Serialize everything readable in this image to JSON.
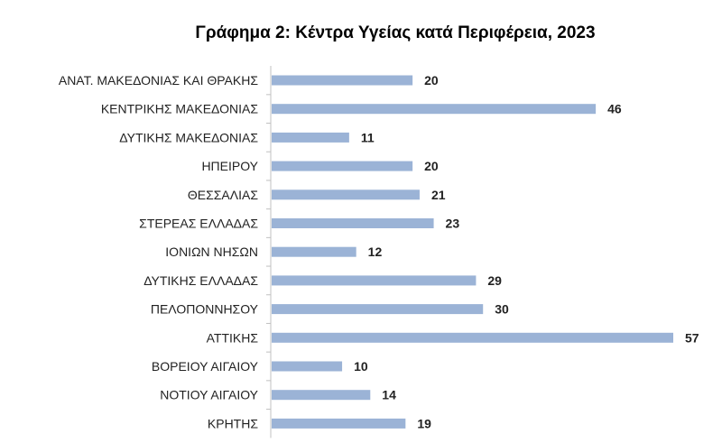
{
  "chart_data": {
    "type": "bar",
    "orientation": "horizontal",
    "title": "Γράφημα 2: Κέντρα Υγείας κατά Περιφέρεια, 2023",
    "categories": [
      "ΑΝΑΤ. ΜΑΚΕΔΟΝΙΑΣ ΚΑΙ ΘΡΑΚΗΣ",
      "ΚΕΝΤΡΙΚΗΣ ΜΑΚΕΔΟΝΙΑΣ",
      "ΔΥΤΙΚΗΣ ΜΑΚΕΔΟΝΙΑΣ",
      "ΗΠΕΙΡΟΥ",
      "ΘΕΣΣΑΛΙΑΣ",
      "ΣΤΕΡΕΑΣ ΕΛΛΑΔΑΣ",
      "ΙΟΝΙΩΝ ΝΗΣΩΝ",
      "ΔΥΤΙΚΗΣ ΕΛΛΑΔΑΣ",
      "ΠΕΛΟΠΟΝΝΗΣΟΥ",
      "ΑΤΤΙΚΗΣ",
      "ΒΟΡΕΙΟΥ ΑΙΓΑΙΟΥ",
      "ΝΟΤΙΟΥ ΑΙΓΑΙΟΥ",
      "ΚΡΗΤΗΣ"
    ],
    "values": [
      20,
      46,
      11,
      20,
      21,
      23,
      12,
      29,
      30,
      57,
      10,
      14,
      19
    ],
    "xlim": [
      0,
      57
    ],
    "grid": false,
    "legend": "none",
    "bar_color": "#9bb3d6",
    "axis_color": "#c0c0c0"
  }
}
